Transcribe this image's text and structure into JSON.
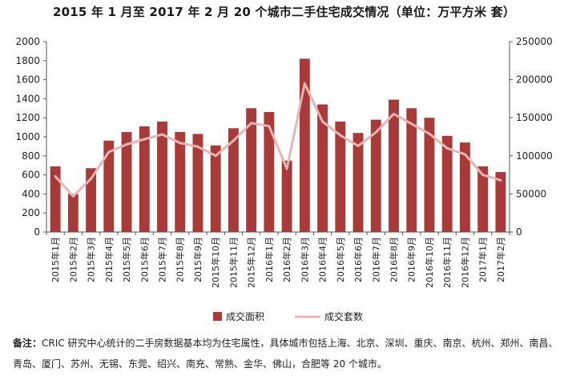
{
  "title": "2015 年 1 月至 2017 年 2 月 20 个城市二手住宅成交情况（单位：万平方米  套）",
  "note": {
    "label": "备注：",
    "text": "CRIC 研究中心统计的二手房数据基本均为住宅属性，具体城市包括上海、北京、深圳、重庆、南京、杭州、郑州、南昌、青岛、厦门、苏州、无锡、东莞、绍兴、南充、常熟、金华、佛山，合肥等 20 个城市。"
  },
  "chart_data": {
    "type": "bar",
    "categories": [
      "2015年1月",
      "2015年2月",
      "2015年3月",
      "2015年4月",
      "2015年5月",
      "2015年6月",
      "2015年7月",
      "2015年8月",
      "2015年9月",
      "2015年10月",
      "2015年11月",
      "2015年12月",
      "2016年1月",
      "2016年2月",
      "2016年3月",
      "2016年4月",
      "2016年5月",
      "2016年6月",
      "2016年7月",
      "2016年8月",
      "2016年9月",
      "2016年10月",
      "2016年11月",
      "2016年12月",
      "2017年1月",
      "2017年2月"
    ],
    "series": [
      {
        "name": "成交面积",
        "type": "bar",
        "axis": "left",
        "color": "#a93a3a",
        "values": [
          690,
          400,
          670,
          960,
          1050,
          1110,
          1160,
          1050,
          1030,
          910,
          1090,
          1300,
          1260,
          750,
          1820,
          1340,
          1160,
          1040,
          1180,
          1390,
          1300,
          1200,
          1010,
          940,
          690,
          630
        ]
      },
      {
        "name": "成交套数",
        "type": "line",
        "axis": "right",
        "color": "#e8b4b4",
        "values": [
          73000,
          47000,
          70000,
          105000,
          115000,
          122000,
          128000,
          117000,
          112000,
          100000,
          120000,
          143000,
          139000,
          83000,
          195000,
          145000,
          127000,
          113000,
          131000,
          155000,
          142000,
          129000,
          110000,
          102000,
          75000,
          68000
        ]
      }
    ],
    "y_left": {
      "min": 0,
      "max": 2000,
      "step": 200
    },
    "y_right": {
      "min": 0,
      "max": 250000,
      "step": 50000
    },
    "grid": false,
    "legend": "bottom"
  }
}
